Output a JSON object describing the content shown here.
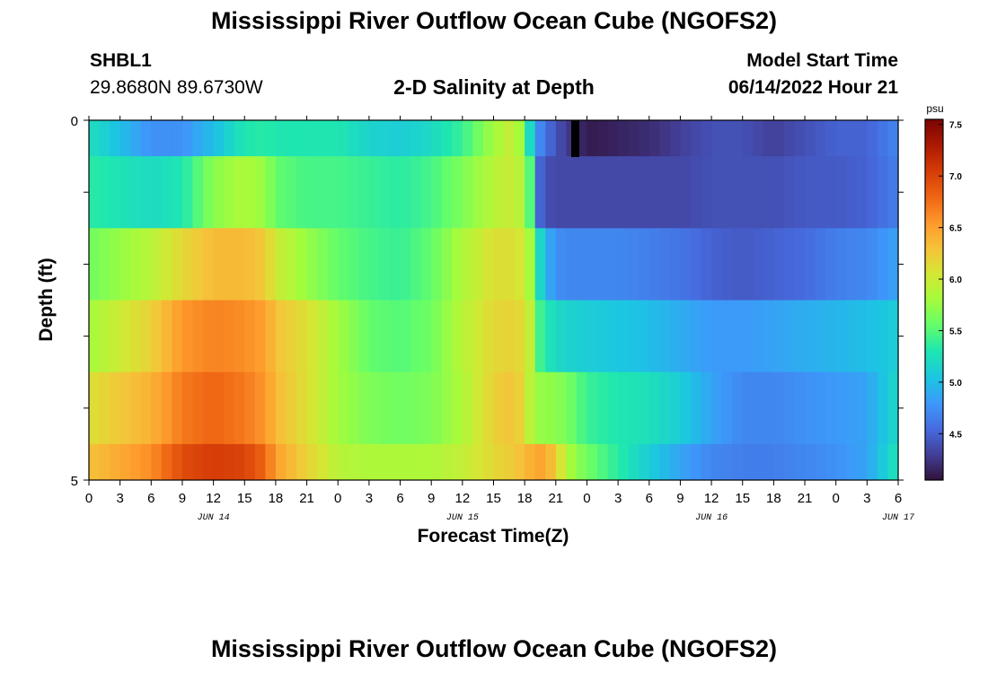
{
  "header": {
    "title": "Mississippi River Outflow Ocean Cube (NGOFS2)",
    "station_id": "SHBL1",
    "coordinates": "29.8680N  89.6730W",
    "model_start_label": "Model Start Time",
    "model_start_value": "06/14/2022 Hour 21",
    "footer_title": "Mississippi River Outflow Ocean Cube (NGOFS2)"
  },
  "chart_data": {
    "type": "heatmap",
    "title": "2-D Salinity at Depth",
    "xlabel": "Forecast Time(Z)",
    "ylabel": "Depth (ft)",
    "colorbar_unit": "psu",
    "colorbar_ticks": [
      "7.5",
      "7.0",
      "6.5",
      "6.0",
      "5.5",
      "5.0",
      "4.5"
    ],
    "colorbar_range": [
      4.05,
      7.55
    ],
    "colormap": "turbo",
    "x_tick_labels": [
      "0",
      "3",
      "6",
      "9",
      "12",
      "15",
      "18",
      "21",
      "0",
      "3",
      "6",
      "9",
      "12",
      "15",
      "18",
      "21",
      "0",
      "3",
      "6",
      "9",
      "12",
      "15",
      "18",
      "21",
      "0",
      "3",
      "6"
    ],
    "date_labels": [
      {
        "label": "JUN 14",
        "hour": 12
      },
      {
        "label": "JUN 15",
        "hour": 36
      },
      {
        "label": "JUN 16",
        "hour": 60
      },
      {
        "label": "JUN 17",
        "hour": 78
      }
    ],
    "y_tick_labels": [
      "0",
      "5"
    ],
    "ylim": [
      0,
      5
    ],
    "xlim_hours": [
      0,
      78
    ],
    "depth_edges_ft": [
      0,
      0.5,
      1.5,
      2.5,
      3.5,
      4.5,
      5
    ],
    "time_hours": [
      0,
      6,
      9,
      12,
      15,
      17,
      18,
      21,
      24,
      27,
      30,
      33,
      36,
      39,
      41,
      42,
      42.5,
      43,
      44,
      45,
      46,
      48,
      51,
      54,
      57,
      60,
      63,
      66,
      69,
      72,
      75,
      78
    ],
    "salinity_layers": [
      {
        "depth": "0-0.5",
        "values": [
          5.25,
          4.75,
          4.75,
          5.0,
          5.3,
          5.35,
          5.3,
          5.3,
          5.3,
          5.15,
          5.1,
          5.2,
          5.4,
          5.8,
          6.0,
          5.6,
          5.2,
          4.8,
          4.6,
          4.4,
          4.3,
          4.1,
          4.15,
          4.2,
          4.3,
          4.4,
          4.4,
          4.3,
          4.4,
          4.5,
          4.5,
          4.7
        ]
      },
      {
        "depth": "0.5-1.5",
        "values": [
          5.35,
          5.2,
          5.3,
          5.7,
          5.85,
          5.75,
          5.55,
          5.45,
          5.45,
          5.4,
          5.35,
          5.45,
          5.65,
          5.9,
          6.0,
          5.8,
          5.5,
          4.6,
          4.4,
          4.35,
          4.35,
          4.35,
          4.35,
          4.35,
          4.35,
          4.4,
          4.4,
          4.4,
          4.45,
          4.45,
          4.5,
          4.65
        ]
      },
      {
        "depth": "1.5-2.5",
        "values": [
          5.6,
          5.9,
          6.15,
          6.35,
          6.35,
          6.25,
          6.0,
          5.75,
          5.55,
          5.45,
          5.4,
          5.55,
          5.85,
          6.1,
          6.1,
          6.0,
          5.8,
          5.4,
          4.95,
          4.75,
          4.7,
          4.7,
          4.7,
          4.65,
          4.6,
          4.5,
          4.45,
          4.5,
          4.55,
          4.65,
          4.7,
          4.85
        ]
      },
      {
        "depth": "2.5-3.5",
        "values": [
          5.8,
          6.2,
          6.55,
          6.65,
          6.6,
          6.5,
          6.3,
          6.1,
          5.8,
          5.55,
          5.5,
          5.6,
          5.9,
          6.15,
          6.2,
          6.1,
          5.95,
          5.55,
          5.3,
          5.2,
          5.15,
          5.1,
          5.05,
          5.0,
          4.9,
          4.8,
          4.8,
          4.85,
          4.9,
          4.95,
          5.0,
          5.1
        ]
      },
      {
        "depth": "3.5-4.5",
        "values": [
          6.1,
          6.4,
          6.7,
          6.8,
          6.7,
          6.55,
          6.35,
          6.1,
          5.8,
          5.65,
          5.6,
          5.65,
          5.85,
          6.2,
          6.3,
          6.1,
          5.9,
          5.75,
          5.75,
          5.7,
          5.65,
          5.4,
          5.3,
          5.25,
          5.1,
          4.85,
          4.7,
          4.7,
          4.75,
          4.8,
          4.85,
          5.2
        ]
      },
      {
        "depth": "4.5-5",
        "values": [
          6.3,
          6.6,
          6.95,
          7.05,
          7.0,
          6.8,
          6.5,
          6.2,
          5.9,
          5.85,
          5.85,
          5.85,
          5.95,
          6.15,
          6.25,
          6.35,
          6.4,
          6.5,
          6.45,
          6.25,
          5.85,
          5.6,
          5.35,
          5.1,
          4.85,
          4.7,
          4.65,
          4.65,
          4.7,
          4.75,
          4.85,
          5.3
        ]
      }
    ]
  }
}
